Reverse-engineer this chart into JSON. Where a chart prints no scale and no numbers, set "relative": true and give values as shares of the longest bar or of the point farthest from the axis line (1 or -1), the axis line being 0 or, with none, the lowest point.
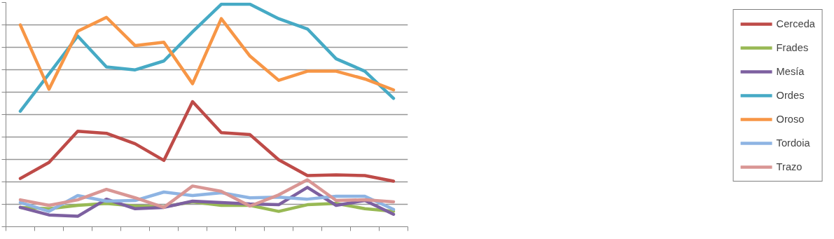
{
  "chart_data": {
    "type": "line",
    "relative": true,
    "grid": "y",
    "legend": "right",
    "tick_labels": false,
    "line_style": "solid",
    "marker": "none",
    "categories": [
      null,
      null,
      null,
      null,
      null,
      null,
      null,
      null,
      null,
      null,
      null,
      null,
      null,
      null
    ],
    "series": [
      {
        "name": "Cerceda",
        "color": "#be4b48",
        "values": [
          0.217,
          0.289,
          0.429,
          0.42,
          0.373,
          0.298,
          0.562,
          0.423,
          0.414,
          0.301,
          0.23,
          0.233,
          0.23,
          0.205
        ]
      },
      {
        "name": "Frades",
        "color": "#98b954",
        "values": [
          0.087,
          0.081,
          0.096,
          0.105,
          0.093,
          0.09,
          0.112,
          0.096,
          0.096,
          0.069,
          0.099,
          0.105,
          0.081,
          0.069
        ]
      },
      {
        "name": "Mesía",
        "color": "#7d60a0",
        "values": [
          0.087,
          0.053,
          0.047,
          0.124,
          0.081,
          0.087,
          0.115,
          0.109,
          0.102,
          0.099,
          0.177,
          0.096,
          0.118,
          0.056
        ]
      },
      {
        "name": "Ordes",
        "color": "#46aac5",
        "values": [
          0.519,
          0.687,
          0.857,
          0.718,
          0.705,
          0.745,
          0.876,
          1,
          1,
          0.935,
          0.889,
          0.755,
          0.699,
          0.577
        ]
      },
      {
        "name": "Oroso",
        "color": "#f79646",
        "values": [
          0.907,
          0.618,
          0.879,
          0.941,
          0.814,
          0.829,
          0.643,
          0.935,
          0.767,
          0.658,
          0.699,
          0.699,
          0.664,
          0.615
        ]
      },
      {
        "name": "Tordoia",
        "color": "#8eb4e3",
        "values": [
          0.109,
          0.069,
          0.14,
          0.115,
          0.118,
          0.156,
          0.14,
          0.153,
          0.13,
          0.133,
          0.124,
          0.137,
          0.137,
          0.078
        ]
      },
      {
        "name": "Trazo",
        "color": "#d99694",
        "values": [
          0.121,
          0.096,
          0.121,
          0.168,
          0.13,
          0.087,
          0.183,
          0.159,
          0.093,
          0.143,
          0.211,
          0.118,
          0.121,
          0.112
        ]
      }
    ]
  }
}
